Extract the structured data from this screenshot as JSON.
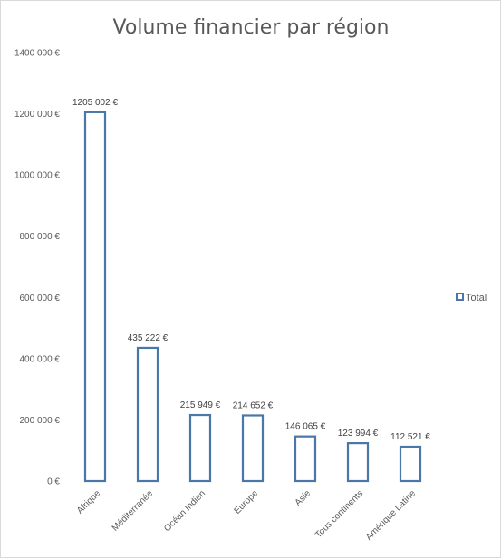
{
  "chart_data": {
    "type": "bar",
    "title": "Volume financier par région",
    "categories": [
      "Afrique",
      "Méditerranée",
      "Océan Indien",
      "Europe",
      "Asie",
      "Tous continents",
      "Amérique Latine"
    ],
    "series": [
      {
        "name": "Total",
        "values": [
          1205002,
          435222,
          215949,
          214652,
          146065,
          123994,
          112521
        ],
        "labels": [
          "1205 002 €",
          "435 222 €",
          "215 949 €",
          "214 652 €",
          "146 065 €",
          "123 994 €",
          "112 521 €"
        ]
      }
    ],
    "ylim": [
      0,
      1400000
    ],
    "yticks": [
      0,
      200000,
      400000,
      600000,
      800000,
      1000000,
      1200000,
      1400000
    ],
    "ytick_labels": [
      "0 €",
      "200 000 €",
      "400 000 €",
      "600 000 €",
      "800 000 €",
      "1000 000 €",
      "1200 000 €",
      "1400 000 €"
    ],
    "grid": false,
    "legend": "right",
    "bar_style": "outline",
    "colors": {
      "bar_stroke": "#4a76a8",
      "bar_fill": "#ffffff",
      "text": "#595959"
    }
  }
}
